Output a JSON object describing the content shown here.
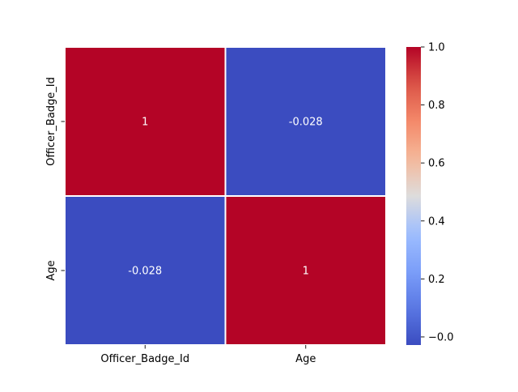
{
  "chart_data": {
    "type": "heatmap",
    "title": "",
    "xlabel": "",
    "ylabel": "",
    "x_categories": [
      "Officer_Badge_Id",
      "Age"
    ],
    "y_categories": [
      "Officer_Badge_Id",
      "Age"
    ],
    "values": [
      [
        1,
        -0.028
      ],
      [
        -0.028,
        1
      ]
    ],
    "annotations": [
      [
        "1",
        "-0.028"
      ],
      [
        "-0.028",
        "1"
      ]
    ],
    "colormap": "coolwarm",
    "color_range": [
      -0.028,
      1.0
    ],
    "colorbar": {
      "ticks": [
        0.0,
        0.2,
        0.4,
        0.6,
        0.8,
        1.0
      ],
      "tick_labels": [
        "−0.0",
        "0.2",
        "0.4",
        "0.6",
        "0.8",
        "1.0"
      ]
    },
    "grid": false,
    "cell_separator_color": "#ffffff",
    "annotation_color": "#ffffff",
    "text_color": "#000000"
  }
}
